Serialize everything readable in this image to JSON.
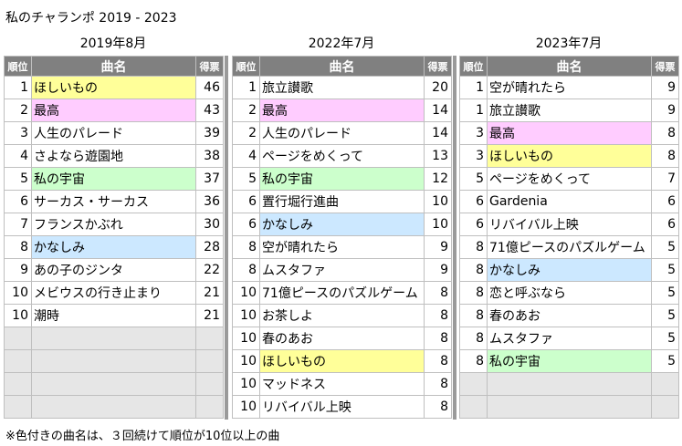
{
  "title": "私のチャランポ 2019 - 2023",
  "headers": {
    "rank": "順位",
    "song": "曲名",
    "votes": "得票"
  },
  "colors": {
    "yellow": "#ffff99",
    "pink": "#ffccff",
    "green": "#ccffcc",
    "blue": "#cce8ff",
    "header": "#808080",
    "empty": "#e6e6e6"
  },
  "tables": [
    {
      "period": "2019年8月",
      "rows": [
        {
          "rank": "1",
          "song": "ほしいもの",
          "votes": "46",
          "color": "yellow"
        },
        {
          "rank": "2",
          "song": "最高",
          "votes": "43",
          "color": "pink"
        },
        {
          "rank": "3",
          "song": "人生のパレード",
          "votes": "39",
          "color": ""
        },
        {
          "rank": "4",
          "song": "さよなら遊園地",
          "votes": "38",
          "color": ""
        },
        {
          "rank": "5",
          "song": "私の宇宙",
          "votes": "37",
          "color": "green"
        },
        {
          "rank": "6",
          "song": "サーカス・サーカス",
          "votes": "36",
          "color": ""
        },
        {
          "rank": "7",
          "song": "フランスかぶれ",
          "votes": "30",
          "color": ""
        },
        {
          "rank": "8",
          "song": "かなしみ",
          "votes": "28",
          "color": "blue"
        },
        {
          "rank": "9",
          "song": "あの子のジンタ",
          "votes": "22",
          "color": ""
        },
        {
          "rank": "10",
          "song": "メビウスの行き止まり",
          "votes": "21",
          "color": ""
        },
        {
          "rank": "10",
          "song": "潮時",
          "votes": "21",
          "color": ""
        }
      ]
    },
    {
      "period": "2022年7月",
      "rows": [
        {
          "rank": "1",
          "song": "旅立讃歌",
          "votes": "20",
          "color": ""
        },
        {
          "rank": "2",
          "song": "最高",
          "votes": "14",
          "color": "pink"
        },
        {
          "rank": "2",
          "song": "人生のパレード",
          "votes": "14",
          "color": ""
        },
        {
          "rank": "4",
          "song": "ページをめくって",
          "votes": "13",
          "color": ""
        },
        {
          "rank": "5",
          "song": "私の宇宙",
          "votes": "12",
          "color": "green"
        },
        {
          "rank": "6",
          "song": "置行堀行進曲",
          "votes": "10",
          "color": ""
        },
        {
          "rank": "6",
          "song": "かなしみ",
          "votes": "10",
          "color": "blue"
        },
        {
          "rank": "8",
          "song": "空が晴れたら",
          "votes": "9",
          "color": ""
        },
        {
          "rank": "8",
          "song": "ムスタファ",
          "votes": "9",
          "color": ""
        },
        {
          "rank": "10",
          "song": "71億ピースのパズルゲーム",
          "votes": "8",
          "color": ""
        },
        {
          "rank": "10",
          "song": "お茶しよ",
          "votes": "8",
          "color": ""
        },
        {
          "rank": "10",
          "song": "春のあお",
          "votes": "8",
          "color": ""
        },
        {
          "rank": "10",
          "song": "ほしいもの",
          "votes": "8",
          "color": "yellow"
        },
        {
          "rank": "10",
          "song": "マッドネス",
          "votes": "8",
          "color": ""
        },
        {
          "rank": "10",
          "song": "リバイバル上映",
          "votes": "8",
          "color": ""
        }
      ]
    },
    {
      "period": "2023年7月",
      "rows": [
        {
          "rank": "1",
          "song": "空が晴れたら",
          "votes": "9",
          "color": ""
        },
        {
          "rank": "1",
          "song": "旅立讃歌",
          "votes": "9",
          "color": ""
        },
        {
          "rank": "3",
          "song": "最高",
          "votes": "8",
          "color": "pink"
        },
        {
          "rank": "3",
          "song": "ほしいもの",
          "votes": "8",
          "color": "yellow"
        },
        {
          "rank": "5",
          "song": "ページをめくって",
          "votes": "7",
          "color": ""
        },
        {
          "rank": "6",
          "song": "Gardenia",
          "votes": "6",
          "color": ""
        },
        {
          "rank": "6",
          "song": "リバイバル上映",
          "votes": "6",
          "color": ""
        },
        {
          "rank": "8",
          "song": "71億ピースのパズルゲーム",
          "votes": "5",
          "color": ""
        },
        {
          "rank": "8",
          "song": "かなしみ",
          "votes": "5",
          "color": "blue"
        },
        {
          "rank": "8",
          "song": "恋と呼ぶなら",
          "votes": "5",
          "color": ""
        },
        {
          "rank": "8",
          "song": "春のあお",
          "votes": "5",
          "color": ""
        },
        {
          "rank": "8",
          "song": "ムスタファ",
          "votes": "5",
          "color": ""
        },
        {
          "rank": "8",
          "song": "私の宇宙",
          "votes": "5",
          "color": "green"
        }
      ]
    }
  ],
  "note": "※色付きの曲名は、３回続けて順位が10位以上の曲"
}
